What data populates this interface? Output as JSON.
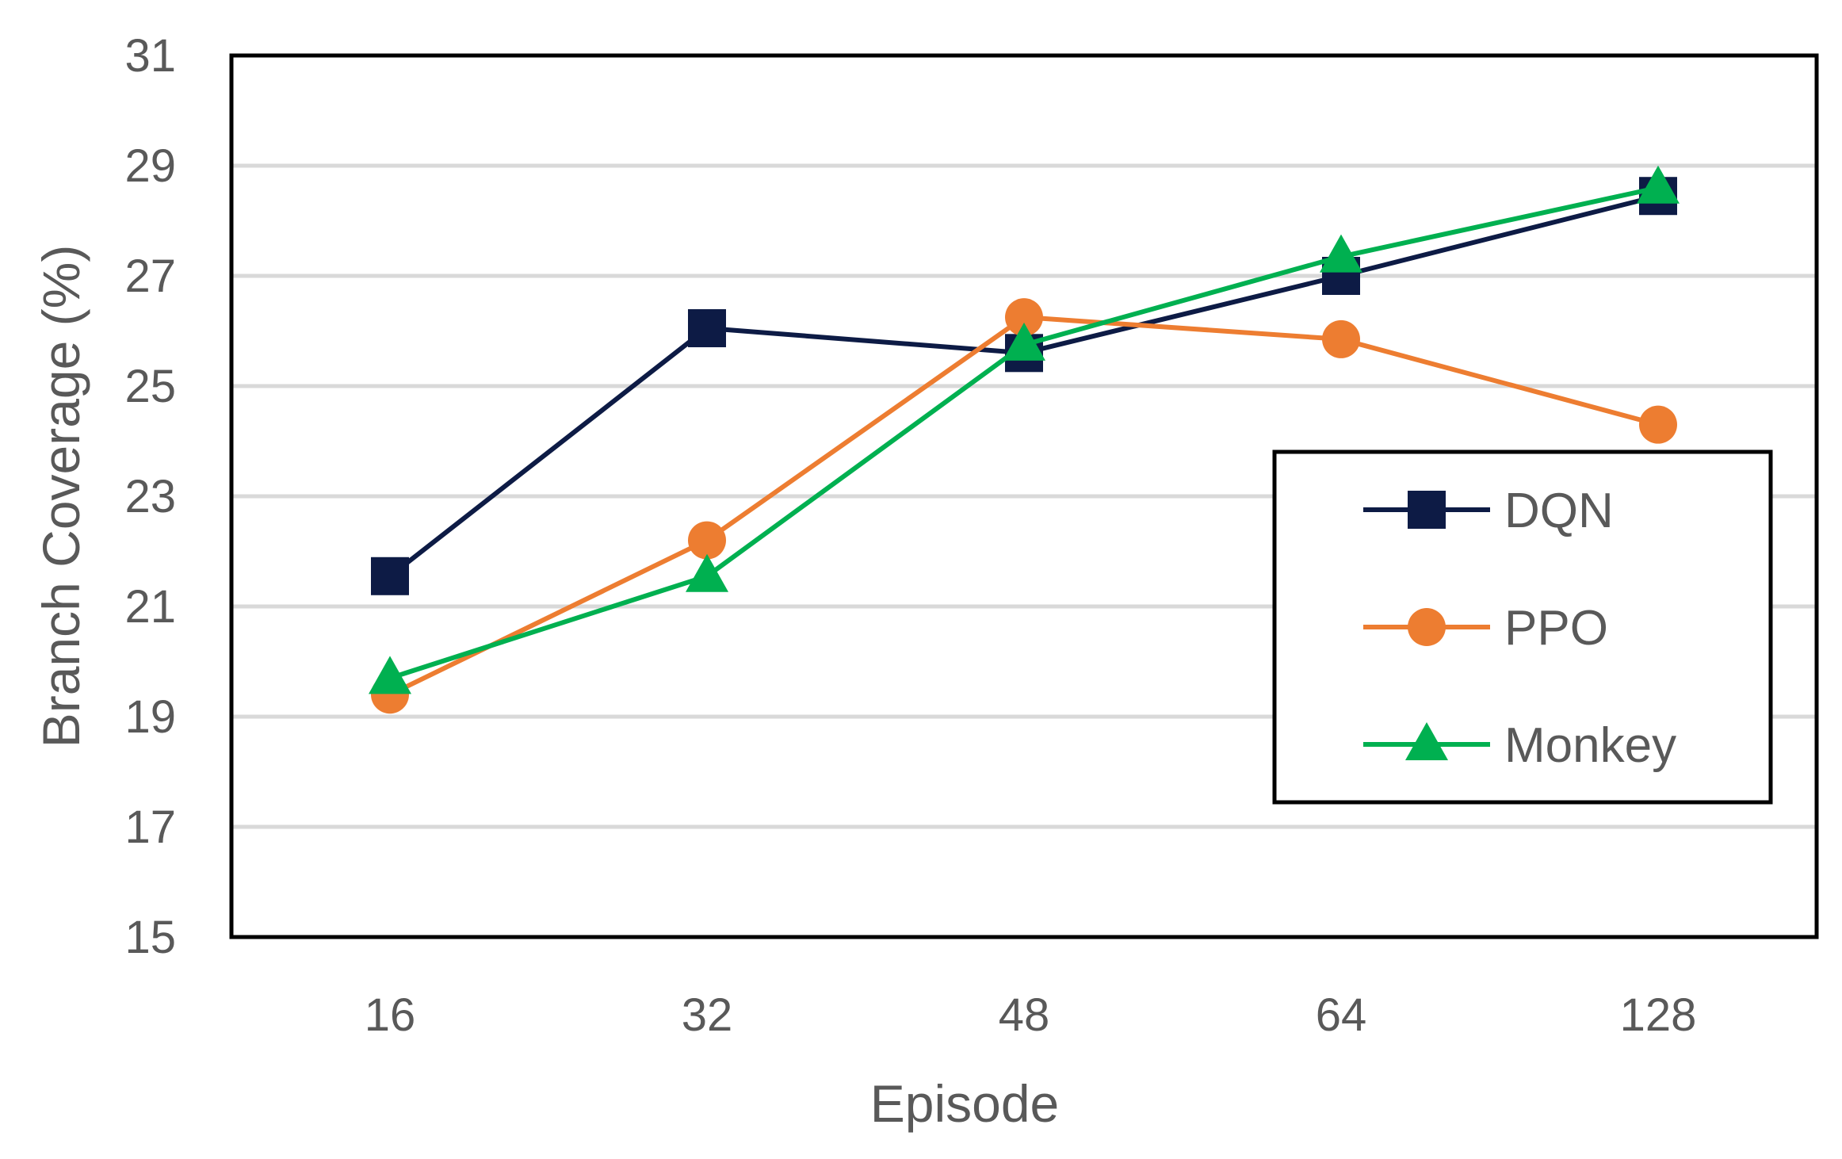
{
  "chart_data": {
    "type": "line",
    "title": "",
    "xlabel": "Episode",
    "ylabel": "Branch Coverage (%)",
    "categories": [
      "16",
      "32",
      "48",
      "64",
      "128"
    ],
    "ylim": [
      15,
      31
    ],
    "yticks": [
      "15",
      "17",
      "19",
      "21",
      "23",
      "25",
      "27",
      "29",
      "31"
    ],
    "grid": "horizontal",
    "legend_position": "right",
    "series": [
      {
        "name": "DQN",
        "values": [
          21.55,
          26.05,
          25.6,
          27.0,
          28.45
        ],
        "color": "#0d1b45",
        "marker": "square"
      },
      {
        "name": "PPO",
        "values": [
          19.4,
          22.2,
          26.25,
          25.85,
          24.3
        ],
        "color": "#ed7d31",
        "marker": "circle"
      },
      {
        "name": "Monkey",
        "values": [
          19.7,
          21.55,
          25.75,
          27.35,
          28.6
        ],
        "color": "#00b050",
        "marker": "triangle"
      }
    ]
  }
}
